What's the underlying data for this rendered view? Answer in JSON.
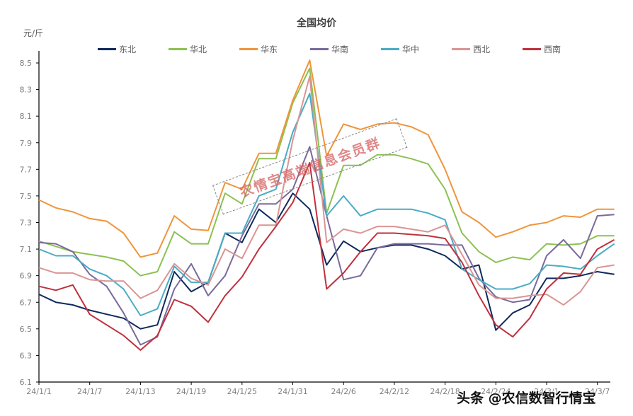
{
  "chart_data": {
    "type": "line",
    "title": "全国均价",
    "ylabel": "元/斤",
    "xlabel": "",
    "ylim": [
      6.1,
      8.6
    ],
    "yticks": [
      6.1,
      6.3,
      6.5,
      6.7,
      6.9,
      7.1,
      7.3,
      7.5,
      7.7,
      7.9,
      8.1,
      8.3,
      8.5
    ],
    "xtick_labels": [
      "24/1/1",
      "24/1/7",
      "24/1/13",
      "24/1/19",
      "24/1/25",
      "24/1/31",
      "24/2/6",
      "24/2/12",
      "24/2/18",
      "24/2/24",
      "24/3/1",
      "24/3/7"
    ],
    "grid": false,
    "legend_position": "top",
    "x": [
      "1/1",
      "1/3",
      "1/5",
      "1/7",
      "1/9",
      "1/11",
      "1/13",
      "1/15",
      "1/17",
      "1/19",
      "1/21",
      "1/23",
      "1/25",
      "1/27",
      "1/29",
      "1/31",
      "2/2",
      "2/4",
      "2/6",
      "2/8",
      "2/10",
      "2/12",
      "2/14",
      "2/16",
      "2/18",
      "2/20",
      "2/22",
      "2/24",
      "2/26",
      "2/28",
      "3/1",
      "3/3",
      "3/5",
      "3/7",
      "3/9"
    ],
    "series": [
      {
        "name": "东北",
        "color": "#0e2a5c",
        "values": [
          6.76,
          6.7,
          6.68,
          6.64,
          6.61,
          6.58,
          6.5,
          6.53,
          6.93,
          6.78,
          6.85,
          7.22,
          7.15,
          7.4,
          7.3,
          7.52,
          7.4,
          6.98,
          7.16,
          7.08,
          7.11,
          7.13,
          7.13,
          7.1,
          7.05,
          6.95,
          6.98,
          6.49,
          6.62,
          6.68,
          6.88,
          6.88,
          6.9,
          6.93,
          6.91
        ]
      },
      {
        "name": "华北",
        "color": "#8cc152",
        "values": [
          7.16,
          7.12,
          7.08,
          7.06,
          7.04,
          7.01,
          6.9,
          6.93,
          7.23,
          7.14,
          7.14,
          7.52,
          7.44,
          7.78,
          7.78,
          8.2,
          8.46,
          7.37,
          7.73,
          7.73,
          7.81,
          7.81,
          7.78,
          7.74,
          7.55,
          7.22,
          7.08,
          7.0,
          7.04,
          7.02,
          7.14,
          7.13,
          7.14,
          7.2,
          7.2
        ]
      },
      {
        "name": "华东",
        "color": "#f0953c",
        "values": [
          7.47,
          7.41,
          7.38,
          7.33,
          7.31,
          7.22,
          7.04,
          7.07,
          7.35,
          7.25,
          7.24,
          7.6,
          7.55,
          7.82,
          7.82,
          8.22,
          8.52,
          7.8,
          8.04,
          8.0,
          8.04,
          8.05,
          8.02,
          7.96,
          7.7,
          7.38,
          7.3,
          7.19,
          7.23,
          7.28,
          7.3,
          7.35,
          7.34,
          7.4,
          7.4
        ]
      },
      {
        "name": "华南",
        "color": "#7a6a9b",
        "values": [
          7.15,
          7.14,
          7.08,
          6.91,
          6.82,
          6.62,
          6.38,
          6.44,
          6.8,
          6.99,
          6.75,
          6.9,
          7.2,
          7.44,
          7.44,
          7.55,
          7.87,
          7.35,
          6.87,
          6.9,
          7.11,
          7.14,
          7.14,
          7.14,
          7.13,
          7.13,
          6.88,
          6.74,
          6.7,
          6.72,
          7.05,
          7.17,
          7.03,
          7.35,
          7.36
        ]
      },
      {
        "name": "华中",
        "color": "#4aacc5",
        "values": [
          7.1,
          7.05,
          7.05,
          6.95,
          6.9,
          6.8,
          6.6,
          6.65,
          6.97,
          6.85,
          6.85,
          7.22,
          7.22,
          7.5,
          7.55,
          7.98,
          8.27,
          7.35,
          7.5,
          7.35,
          7.4,
          7.4,
          7.4,
          7.37,
          7.32,
          6.95,
          6.87,
          6.8,
          6.8,
          6.84,
          6.98,
          6.97,
          6.95,
          7.05,
          7.14
        ]
      },
      {
        "name": "西北",
        "color": "#d99594",
        "values": [
          6.96,
          6.92,
          6.92,
          6.87,
          6.86,
          6.86,
          6.73,
          6.79,
          6.99,
          6.88,
          6.83,
          7.1,
          7.03,
          7.28,
          7.28,
          7.92,
          8.4,
          7.15,
          7.25,
          7.22,
          7.27,
          7.27,
          7.25,
          7.23,
          7.28,
          7.06,
          6.83,
          6.73,
          6.73,
          6.75,
          6.76,
          6.68,
          6.78,
          6.96,
          6.98
        ]
      },
      {
        "name": "西南",
        "color": "#c0303c",
        "values": [
          6.82,
          6.79,
          6.83,
          6.61,
          6.53,
          6.45,
          6.34,
          6.45,
          6.72,
          6.67,
          6.55,
          6.75,
          6.89,
          7.1,
          7.27,
          7.45,
          7.75,
          6.8,
          6.92,
          7.08,
          7.22,
          7.22,
          7.21,
          7.2,
          7.18,
          7.0,
          6.75,
          6.53,
          6.44,
          6.58,
          6.8,
          6.92,
          6.91,
          7.1,
          7.17
        ]
      }
    ]
  },
  "labels": {
    "title": "全国均价",
    "unit": "元/斤",
    "stamp_text": "农情宝高端信息会员群",
    "watermark": "头条 @农信数智行情宝"
  }
}
